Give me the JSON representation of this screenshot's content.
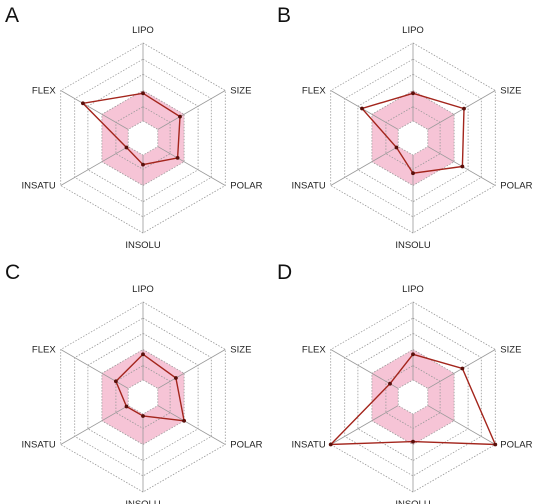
{
  "chart_data": [
    {
      "type": "radar",
      "panel": "A",
      "axes": [
        "LIPO",
        "SIZE",
        "POLAR",
        "INSOLU",
        "INSATU",
        "FLEX"
      ],
      "rlim": [
        0,
        1
      ],
      "optimal_zone": [
        0.5,
        0.5,
        0.5,
        0.5,
        0.5,
        0.5
      ],
      "series": [
        {
          "values": [
            0.47,
            0.45,
            0.42,
            0.28,
            0.2,
            0.73
          ]
        }
      ]
    },
    {
      "type": "radar",
      "panel": "B",
      "axes": [
        "LIPO",
        "SIZE",
        "POLAR",
        "INSOLU",
        "INSATU",
        "FLEX"
      ],
      "rlim": [
        0,
        1
      ],
      "optimal_zone": [
        0.5,
        0.5,
        0.5,
        0.5,
        0.5,
        0.5
      ],
      "series": [
        {
          "values": [
            0.47,
            0.62,
            0.6,
            0.37,
            0.2,
            0.62
          ]
        }
      ]
    },
    {
      "type": "radar",
      "panel": "C",
      "axes": [
        "LIPO",
        "SIZE",
        "POLAR",
        "INSOLU",
        "INSATU",
        "FLEX"
      ],
      "rlim": [
        0,
        1
      ],
      "optimal_zone": [
        0.5,
        0.5,
        0.5,
        0.5,
        0.5,
        0.5
      ],
      "series": [
        {
          "values": [
            0.45,
            0.4,
            0.5,
            0.2,
            0.2,
            0.33
          ]
        }
      ]
    },
    {
      "type": "radar",
      "panel": "D",
      "axes": [
        "LIPO",
        "SIZE",
        "POLAR",
        "INSOLU",
        "INSATU",
        "FLEX"
      ],
      "rlim": [
        0,
        1
      ],
      "optimal_zone": [
        0.5,
        0.5,
        0.5,
        0.5,
        0.5,
        0.5
      ],
      "series": [
        {
          "values": [
            0.45,
            0.6,
            1.0,
            0.47,
            1.0,
            0.28
          ]
        }
      ]
    }
  ]
}
